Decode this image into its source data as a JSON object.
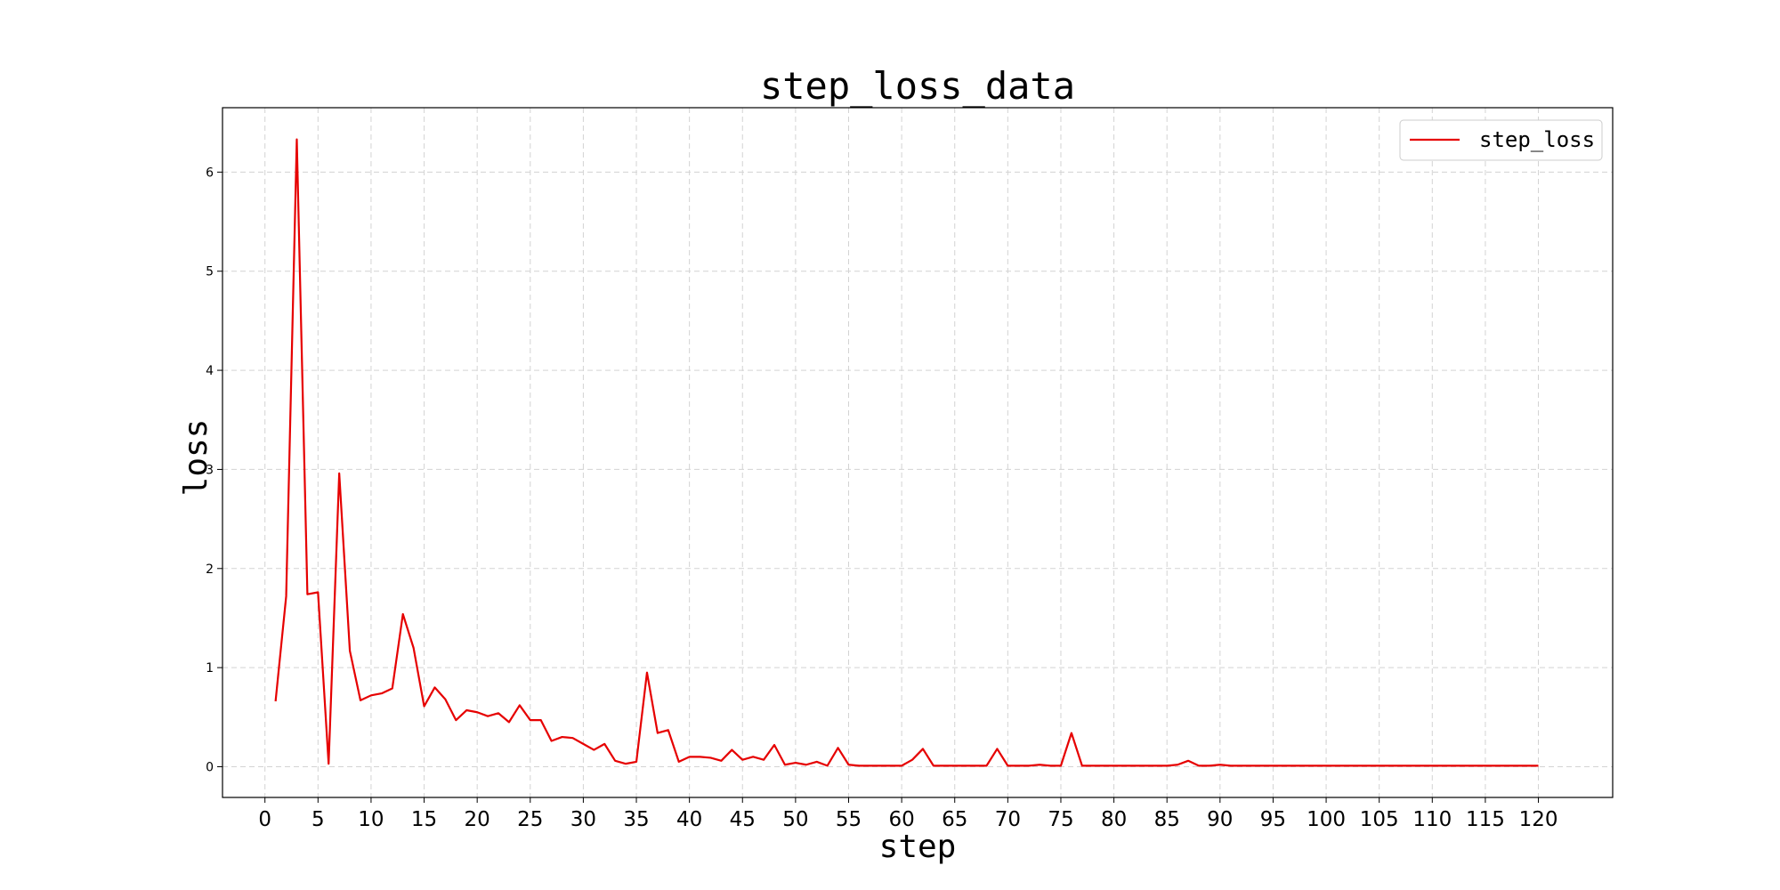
{
  "chart_data": {
    "type": "line",
    "title": "step_loss_data",
    "xlabel": "step",
    "ylabel": "loss",
    "xlim": [
      -4,
      127
    ],
    "ylim": [
      -0.31,
      6.65
    ],
    "xticks": [
      0,
      5,
      10,
      15,
      20,
      25,
      30,
      35,
      40,
      45,
      50,
      55,
      60,
      65,
      70,
      75,
      80,
      85,
      90,
      95,
      100,
      105,
      110,
      115,
      120
    ],
    "yticks": [
      0,
      1,
      2,
      3,
      4,
      5,
      6
    ],
    "grid": true,
    "legend_position": "upper-right",
    "series": [
      {
        "name": "step_loss",
        "color": "#e60000",
        "x": [
          1,
          2,
          3,
          4,
          5,
          6,
          7,
          8,
          9,
          10,
          11,
          12,
          13,
          14,
          15,
          16,
          17,
          18,
          19,
          20,
          21,
          22,
          23,
          24,
          25,
          26,
          27,
          28,
          29,
          30,
          31,
          32,
          33,
          34,
          35,
          36,
          37,
          38,
          39,
          40,
          41,
          42,
          43,
          44,
          45,
          46,
          47,
          48,
          49,
          50,
          51,
          52,
          53,
          54,
          55,
          56,
          57,
          58,
          59,
          60,
          61,
          62,
          63,
          64,
          65,
          66,
          67,
          68,
          69,
          70,
          71,
          72,
          73,
          74,
          75,
          76,
          77,
          78,
          79,
          80,
          81,
          82,
          83,
          84,
          85,
          86,
          87,
          88,
          89,
          90,
          91,
          92,
          93,
          94,
          95,
          96,
          97,
          98,
          99,
          100,
          101,
          102,
          103,
          104,
          105,
          106,
          107,
          108,
          109,
          110,
          111,
          112,
          113,
          114,
          115,
          116,
          117,
          118,
          119,
          120
        ],
        "y": [
          0.66,
          1.72,
          6.33,
          1.74,
          1.76,
          0.03,
          2.96,
          1.17,
          0.67,
          0.72,
          0.74,
          0.79,
          1.54,
          1.2,
          0.61,
          0.8,
          0.68,
          0.47,
          0.57,
          0.55,
          0.51,
          0.54,
          0.45,
          0.62,
          0.47,
          0.47,
          0.26,
          0.3,
          0.29,
          0.23,
          0.17,
          0.23,
          0.06,
          0.03,
          0.05,
          0.95,
          0.34,
          0.37,
          0.05,
          0.1,
          0.1,
          0.09,
          0.06,
          0.17,
          0.07,
          0.1,
          0.07,
          0.22,
          0.02,
          0.04,
          0.02,
          0.05,
          0.01,
          0.19,
          0.02,
          0.01,
          0.01,
          0.01,
          0.01,
          0.01,
          0.07,
          0.18,
          0.01,
          0.01,
          0.01,
          0.01,
          0.01,
          0.01,
          0.18,
          0.01,
          0.01,
          0.01,
          0.02,
          0.01,
          0.01,
          0.34,
          0.01,
          0.01,
          0.01,
          0.01,
          0.01,
          0.01,
          0.01,
          0.01,
          0.01,
          0.02,
          0.06,
          0.01,
          0.01,
          0.02,
          0.01,
          0.01,
          0.01,
          0.01,
          0.01,
          0.01,
          0.01,
          0.01,
          0.01,
          0.01,
          0.01,
          0.01,
          0.01,
          0.01,
          0.01,
          0.01,
          0.01,
          0.01,
          0.01,
          0.01,
          0.01,
          0.01,
          0.01,
          0.01,
          0.01,
          0.01,
          0.01,
          0.01,
          0.01,
          0.01
        ]
      }
    ]
  }
}
